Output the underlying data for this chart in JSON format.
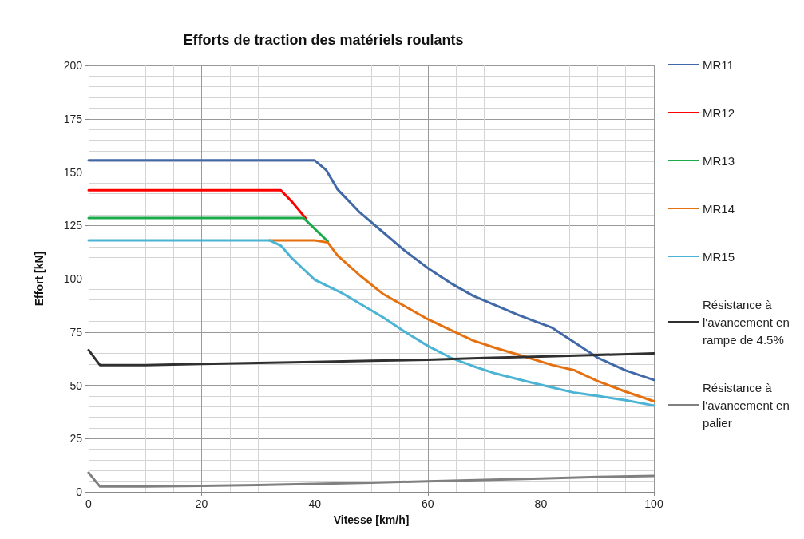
{
  "chart_data": {
    "type": "line",
    "title": "Efforts de traction des matériels roulants",
    "xlabel": "Vitesse [km/h]",
    "ylabel": "Effort [kN]",
    "xlim": [
      0,
      100
    ],
    "xticks": [
      0,
      20,
      40,
      60,
      80,
      100
    ],
    "ylim": [
      0,
      200
    ],
    "yticks": [
      0,
      25,
      50,
      75,
      100,
      125,
      150,
      175,
      200
    ],
    "grid": true,
    "legend": "right",
    "marker": "none",
    "line_style": "solid",
    "series": [
      {
        "name": "MR11",
        "color": "#4169a8",
        "x": [
          0,
          40,
          42,
          44,
          48,
          52,
          56,
          60,
          64,
          68,
          72,
          76,
          80,
          82,
          86,
          90,
          95,
          100
        ],
        "values": [
          155.5,
          155.5,
          151,
          142,
          131,
          122,
          113,
          105,
          98,
          92,
          87.5,
          83,
          79,
          77,
          70,
          63,
          57,
          52.5
        ]
      },
      {
        "name": "MR12",
        "color": "#ff0000",
        "x": [
          0,
          34,
          36,
          38.5
        ],
        "values": [
          141.5,
          141.5,
          136,
          128
        ]
      },
      {
        "name": "MR13",
        "color": "#1aaa4a",
        "x": [
          0,
          38,
          42.3
        ],
        "values": [
          128.5,
          128.5,
          117.5
        ]
      },
      {
        "name": "MR14",
        "color": "#e5700f",
        "x": [
          32,
          40,
          42.3,
          44,
          48,
          52,
          56,
          60,
          64,
          68,
          72,
          77.7,
          82,
          86,
          90,
          95,
          100
        ],
        "values": [
          118,
          118,
          117,
          111,
          101.5,
          93,
          87,
          81,
          76,
          71,
          67.5,
          63,
          59.5,
          57,
          52,
          47,
          42.5
        ]
      },
      {
        "name": "MR15",
        "color": "#4bb3d3",
        "x": [
          0,
          32,
          34,
          36,
          38,
          40,
          45,
          52,
          56,
          60,
          64,
          68,
          72,
          77.7,
          82,
          86,
          90,
          95,
          100
        ],
        "values": [
          118,
          118,
          115.5,
          109.5,
          104.5,
          99.5,
          93,
          82,
          75,
          68.5,
          63,
          59,
          55.5,
          51.7,
          49,
          46.5,
          45,
          43,
          40.5
        ]
      },
      {
        "name": "Résistance à l'avancement en rampe de 4.5%",
        "color": "#303030",
        "x": [
          0,
          2,
          10,
          20,
          30,
          40,
          50,
          60,
          70,
          80,
          90,
          100
        ],
        "values": [
          66.5,
          59.5,
          59.5,
          60,
          60.5,
          61,
          61.5,
          62,
          62.8,
          63.5,
          64.2,
          65
        ]
      },
      {
        "name": "Résistance à l'avancement en palier",
        "color": "#808080",
        "x": [
          0,
          2,
          10,
          20,
          30,
          40,
          50,
          60,
          70,
          80,
          90,
          100
        ],
        "values": [
          9,
          2.5,
          2.5,
          2.8,
          3.2,
          3.7,
          4.3,
          5,
          5.6,
          6.3,
          7,
          7.5
        ]
      }
    ]
  }
}
